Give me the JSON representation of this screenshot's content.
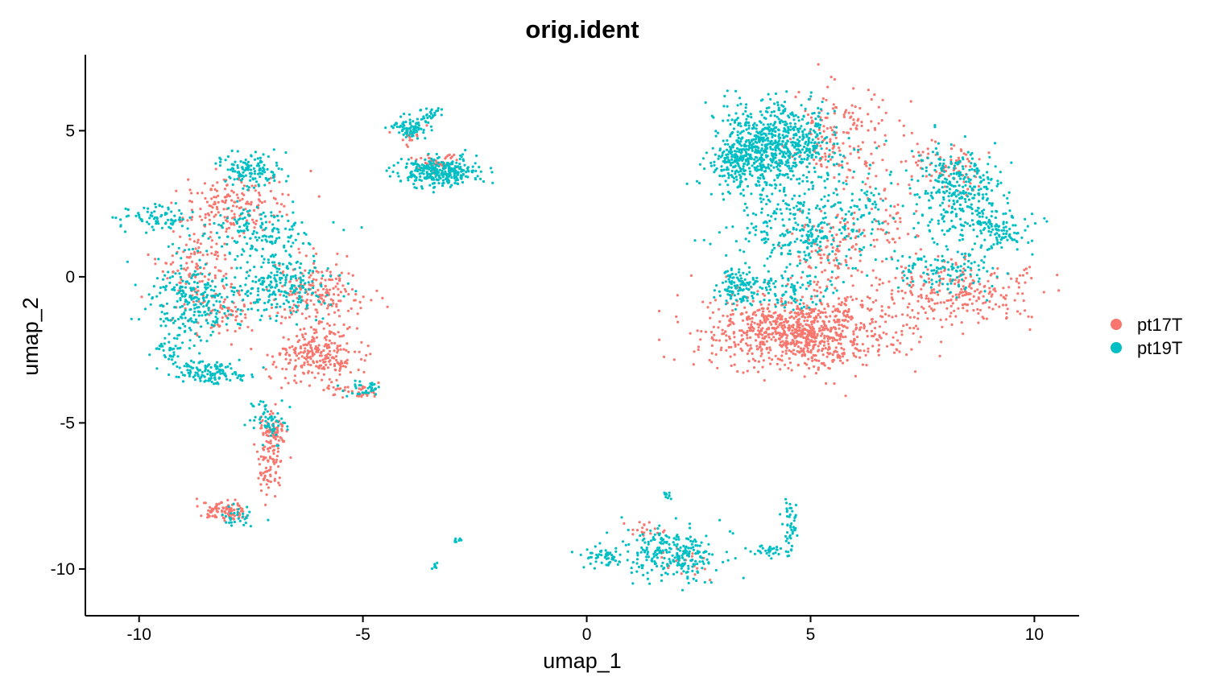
{
  "chart_data": {
    "type": "scatter",
    "title": "orig.ident",
    "xlabel": "umap_1",
    "ylabel": "umap_2",
    "xlim": [
      -11.2,
      11
    ],
    "ylim": [
      -11.6,
      7.6
    ],
    "x_ticks": [
      -10,
      -5,
      0,
      5,
      10
    ],
    "x_tick_labels": [
      "-10",
      "-5",
      "0",
      "5",
      "10"
    ],
    "y_ticks": [
      -10,
      -5,
      0,
      5
    ],
    "y_tick_labels": [
      "-10",
      "-5",
      "0",
      "5"
    ],
    "grid": false,
    "legend_position": "right",
    "series": [
      {
        "name": "pt17T",
        "color": "#F8766D",
        "clusters": [
          {
            "cx": 4.8,
            "cy": -1.9,
            "sx": 1.05,
            "sy": 0.6,
            "n": 900
          },
          {
            "cx": 8.2,
            "cy": -0.6,
            "sx": 0.9,
            "sy": 0.5,
            "n": 260
          },
          {
            "cx": 5.6,
            "cy": 4.9,
            "sx": 0.55,
            "sy": 0.9,
            "n": 170
          },
          {
            "cx": 8.0,
            "cy": 3.8,
            "sx": 0.45,
            "sy": 0.55,
            "n": 80
          },
          {
            "cx": 5.5,
            "cy": 1.0,
            "sx": 0.45,
            "sy": 0.7,
            "n": 110
          },
          {
            "cx": 6.9,
            "cy": 1.8,
            "sx": 0.35,
            "sy": 0.9,
            "n": 50
          },
          {
            "cx": -6.1,
            "cy": -2.7,
            "sx": 0.5,
            "sy": 0.45,
            "n": 230
          },
          {
            "cx": -6.0,
            "cy": -0.6,
            "sx": 0.5,
            "sy": 0.65,
            "n": 200
          },
          {
            "cx": -7.9,
            "cy": 2.5,
            "sx": 0.55,
            "sy": 0.55,
            "n": 160
          },
          {
            "cx": -8.7,
            "cy": 0.3,
            "sx": 0.45,
            "sy": 0.8,
            "n": 130
          },
          {
            "cx": -7.0,
            "cy": -5.6,
            "sx": 0.18,
            "sy": 0.55,
            "n": 110
          },
          {
            "cx": -7.15,
            "cy": -6.7,
            "sx": 0.12,
            "sy": 0.4,
            "n": 40
          },
          {
            "cx": -8.1,
            "cy": -8.0,
            "sx": 0.25,
            "sy": 0.15,
            "n": 95
          },
          {
            "cx": -5.1,
            "cy": -3.9,
            "sx": 0.3,
            "sy": 0.15,
            "n": 40
          },
          {
            "cx": -8.0,
            "cy": -1.3,
            "sx": 0.3,
            "sy": 0.35,
            "n": 50
          },
          {
            "cx": -3.35,
            "cy": 3.9,
            "sx": 0.25,
            "sy": 0.2,
            "n": 45
          },
          {
            "cx": -3.9,
            "cy": 4.8,
            "sx": 0.25,
            "sy": 0.2,
            "n": 15
          },
          {
            "cx": 1.3,
            "cy": -8.7,
            "sx": 0.25,
            "sy": 0.15,
            "n": 18
          },
          {
            "cx": 2.3,
            "cy": -9.8,
            "sx": 0.3,
            "sy": 0.3,
            "n": 20
          }
        ]
      },
      {
        "name": "pt19T",
        "color": "#00BFC4",
        "clusters": [
          {
            "cx": 4.3,
            "cy": 4.6,
            "sx": 0.65,
            "sy": 0.75,
            "n": 650
          },
          {
            "cx": 3.45,
            "cy": 3.9,
            "sx": 0.35,
            "sy": 0.45,
            "n": 220
          },
          {
            "cx": 4.8,
            "cy": 1.7,
            "sx": 0.75,
            "sy": 0.8,
            "n": 320
          },
          {
            "cx": 3.4,
            "cy": -0.3,
            "sx": 0.25,
            "sy": 0.3,
            "n": 110
          },
          {
            "cx": 4.4,
            "cy": -0.5,
            "sx": 0.55,
            "sy": 0.35,
            "n": 90
          },
          {
            "cx": 8.3,
            "cy": 2.9,
            "sx": 0.5,
            "sy": 0.75,
            "n": 320
          },
          {
            "cx": 9.2,
            "cy": 1.6,
            "sx": 0.35,
            "sy": 0.45,
            "n": 110
          },
          {
            "cx": 8.0,
            "cy": 0.2,
            "sx": 0.6,
            "sy": 0.4,
            "n": 120
          },
          {
            "cx": 6.3,
            "cy": 2.4,
            "sx": 0.3,
            "sy": 0.5,
            "n": 40
          },
          {
            "cx": -8.8,
            "cy": -0.9,
            "sx": 0.5,
            "sy": 0.75,
            "n": 270
          },
          {
            "cx": -6.8,
            "cy": -0.3,
            "sx": 0.55,
            "sy": 0.55,
            "n": 230
          },
          {
            "cx": -7.5,
            "cy": 3.7,
            "sx": 0.35,
            "sy": 0.3,
            "n": 130
          },
          {
            "cx": -9.6,
            "cy": 2.0,
            "sx": 0.4,
            "sy": 0.2,
            "n": 80
          },
          {
            "cx": -8.4,
            "cy": -3.3,
            "sx": 0.45,
            "sy": 0.2,
            "n": 130
          },
          {
            "cx": -7.3,
            "cy": 1.6,
            "sx": 0.6,
            "sy": 0.45,
            "n": 150
          },
          {
            "cx": -9.3,
            "cy": -2.5,
            "sx": 0.15,
            "sy": 0.25,
            "n": 35
          },
          {
            "cx": -7.1,
            "cy": -5.0,
            "sx": 0.2,
            "sy": 0.35,
            "n": 60
          },
          {
            "cx": -7.8,
            "cy": -8.2,
            "sx": 0.2,
            "sy": 0.2,
            "n": 30
          },
          {
            "cx": -5.0,
            "cy": -3.8,
            "sx": 0.25,
            "sy": 0.15,
            "n": 35
          },
          {
            "cx": -3.3,
            "cy": 3.6,
            "sx": 0.45,
            "sy": 0.25,
            "n": 300
          },
          {
            "cx": -3.9,
            "cy": 5.1,
            "sx": 0.2,
            "sy": 0.18,
            "n": 80
          },
          {
            "cx": -3.45,
            "cy": 5.55,
            "sx": 0.12,
            "sy": 0.12,
            "n": 25
          },
          {
            "cx": 1.9,
            "cy": -9.5,
            "sx": 0.55,
            "sy": 0.45,
            "n": 260
          },
          {
            "cx": 0.4,
            "cy": -9.6,
            "sx": 0.25,
            "sy": 0.15,
            "n": 55
          },
          {
            "cx": 4.55,
            "cy": -8.4,
            "sx": 0.07,
            "sy": 0.5,
            "n": 45
          },
          {
            "cx": 4.0,
            "cy": -9.4,
            "sx": 0.25,
            "sy": 0.1,
            "n": 30
          },
          {
            "cx": -2.9,
            "cy": -9.0,
            "sx": 0.06,
            "sy": 0.05,
            "n": 8
          },
          {
            "cx": -3.4,
            "cy": -9.9,
            "sx": 0.05,
            "sy": 0.06,
            "n": 8
          },
          {
            "cx": 1.75,
            "cy": -7.4,
            "sx": 0.06,
            "sy": 0.12,
            "n": 10
          }
        ]
      }
    ]
  }
}
